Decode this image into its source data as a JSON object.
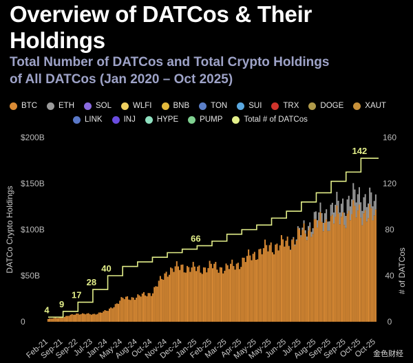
{
  "header": {
    "title": "Overview of DATCos & Their Holdings",
    "subtitle_line1": "Total Number of DATCos and Total Crypto Holdings",
    "subtitle_line2": "of All DATCos (Jan 2020 – Oct 2025)"
  },
  "legend": [
    {
      "label": "BTC",
      "color": "#d98a34"
    },
    {
      "label": "ETH",
      "color": "#9a9a9a"
    },
    {
      "label": "SOL",
      "color": "#8a6be0"
    },
    {
      "label": "WLFI",
      "color": "#f0d060"
    },
    {
      "label": "BNB",
      "color": "#e3b93c"
    },
    {
      "label": "TON",
      "color": "#5b7fc8"
    },
    {
      "label": "SUI",
      "color": "#5aa8e0"
    },
    {
      "label": "TRX",
      "color": "#d0342c"
    },
    {
      "label": "DOGE",
      "color": "#b09a4a"
    },
    {
      "label": "XAUT",
      "color": "#c8913a"
    },
    {
      "label": "LINK",
      "color": "#5a78c8"
    },
    {
      "label": "INJ",
      "color": "#6a4ce0"
    },
    {
      "label": "HYPE",
      "color": "#8fe0c0"
    },
    {
      "label": "PUMP",
      "color": "#7fd090"
    },
    {
      "label": "Total # of DATCos",
      "color": "#e4f08a"
    }
  ],
  "watermark": "金色财经",
  "chart_data": {
    "type": "area",
    "ylabel": "DATCo Crypto Holdings",
    "y2label": "# of DATCos",
    "yticks": [
      "0",
      "$50B",
      "$100B",
      "$150B",
      "$200B"
    ],
    "y2ticks": [
      "0",
      "40",
      "80",
      "120",
      "160"
    ],
    "ylim": [
      0,
      200
    ],
    "y2lim": [
      0,
      160
    ],
    "xticks": [
      "Feb-21",
      "Sep-21",
      "Sep-22",
      "Jul-23",
      "Jan-24",
      "May-24",
      "Aug-24",
      "Oct-24",
      "Nov-24",
      "Dec-24",
      "Jan-25",
      "Feb-25",
      "Mar-25",
      "Apr-25",
      "May-25",
      "May-25",
      "Jun-25",
      "Jul-25",
      "Aug-25",
      "Sep-25",
      "Sep-25",
      "Oct-25",
      "Oct-25"
    ],
    "holdings_series": {
      "name": "BTC",
      "points_x_index": [
        0,
        1,
        2,
        3,
        4,
        5,
        6,
        7,
        8,
        9,
        10,
        11,
        12,
        13,
        14,
        15,
        16,
        17,
        18,
        19,
        20,
        21,
        22
      ],
      "values_billion": [
        3,
        5,
        9,
        8,
        12,
        25,
        27,
        32,
        55,
        60,
        57,
        60,
        58,
        65,
        75,
        82,
        85,
        95,
        105,
        110,
        115,
        120,
        112
      ]
    },
    "other_holdings_series": {
      "name": "ETH",
      "values_billion": [
        0,
        0,
        0,
        0,
        0,
        0,
        0,
        0,
        0,
        0,
        0,
        0,
        0,
        0,
        0,
        0,
        0,
        2,
        8,
        12,
        15,
        18,
        15
      ]
    },
    "datco_count_series": {
      "name": "Total # of DATCos",
      "values": [
        4,
        9,
        17,
        28,
        40,
        48,
        52,
        56,
        60,
        63,
        66,
        70,
        76,
        80,
        84,
        90,
        96,
        104,
        112,
        122,
        130,
        142,
        142
      ]
    },
    "annotations": [
      {
        "label": "4",
        "x_index": 0,
        "value": 4
      },
      {
        "label": "9",
        "x_index": 1,
        "value": 9
      },
      {
        "label": "17",
        "x_index": 2,
        "value": 17
      },
      {
        "label": "28",
        "x_index": 3,
        "value": 28
      },
      {
        "label": "40",
        "x_index": 4,
        "value": 40
      },
      {
        "label": "66",
        "x_index": 10,
        "value": 66
      },
      {
        "label": "142",
        "x_index": 21,
        "value": 142
      }
    ]
  }
}
